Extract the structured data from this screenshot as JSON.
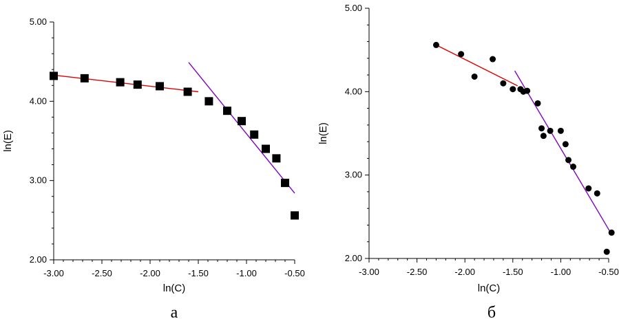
{
  "chart_data": [
    {
      "type": "scatter",
      "panel_label": "а",
      "xlabel": "ln(C)",
      "ylabel": "ln(E)",
      "xlim": [
        -3.0,
        -0.5
      ],
      "ylim": [
        2.0,
        5.0
      ],
      "xticks": [
        "-3.00",
        "-2.50",
        "-2.00",
        "-1.50",
        "-1.00",
        "-0.50"
      ],
      "yticks": [
        "2.00",
        "3.00",
        "4.00",
        "5.00"
      ],
      "grid": false,
      "marker": "square",
      "series": [
        {
          "x": [
            -3.0,
            -2.68,
            -2.31,
            -2.13,
            -1.9,
            -1.61,
            -1.39,
            -1.2,
            -1.05,
            -0.92,
            -0.8,
            -0.69,
            -0.6,
            -0.5
          ],
          "y": [
            4.32,
            4.29,
            4.24,
            4.21,
            4.19,
            4.12,
            4.0,
            3.88,
            3.75,
            3.58,
            3.4,
            3.28,
            2.97,
            2.56
          ]
        }
      ],
      "fit_lines": [
        {
          "color": "#e00000",
          "x": [
            -3.0,
            -1.5
          ],
          "y": [
            4.33,
            4.12
          ]
        },
        {
          "color": "#8000c0",
          "x": [
            -1.6,
            -0.5
          ],
          "y": [
            4.49,
            2.84
          ]
        }
      ]
    },
    {
      "type": "scatter",
      "panel_label": "б",
      "xlabel": "ln(C)",
      "ylabel": "ln(E)",
      "xlim": [
        -3.0,
        -0.5
      ],
      "ylim": [
        2.0,
        5.0
      ],
      "xticks": [
        "-3.00",
        "-2.50",
        "-2.00",
        "-1.50",
        "-1.00",
        "-0.50"
      ],
      "yticks": [
        "2.00",
        "3.00",
        "4.00",
        "5.00"
      ],
      "grid": false,
      "marker": "circle",
      "series": [
        {
          "x": [
            -2.3,
            -2.04,
            -1.9,
            -1.71,
            -1.6,
            -1.5,
            -1.42,
            -1.39,
            -1.35,
            -1.24,
            -1.2,
            -1.18,
            -1.11,
            -1.0,
            -0.95,
            -0.92,
            -0.87,
            -0.71,
            -0.62,
            -0.52,
            -0.47
          ],
          "y": [
            4.56,
            4.45,
            4.18,
            4.39,
            4.1,
            4.03,
            4.03,
            4.0,
            4.01,
            3.86,
            3.56,
            3.47,
            3.53,
            3.53,
            3.37,
            3.18,
            3.1,
            2.84,
            2.78,
            2.08,
            2.31
          ]
        }
      ],
      "fit_lines": [
        {
          "color": "#e00000",
          "x": [
            -2.3,
            -1.45
          ],
          "y": [
            4.56,
            4.07
          ]
        },
        {
          "color": "#8000c0",
          "x": [
            -1.48,
            -0.47
          ],
          "y": [
            4.25,
            2.29
          ]
        }
      ]
    }
  ]
}
